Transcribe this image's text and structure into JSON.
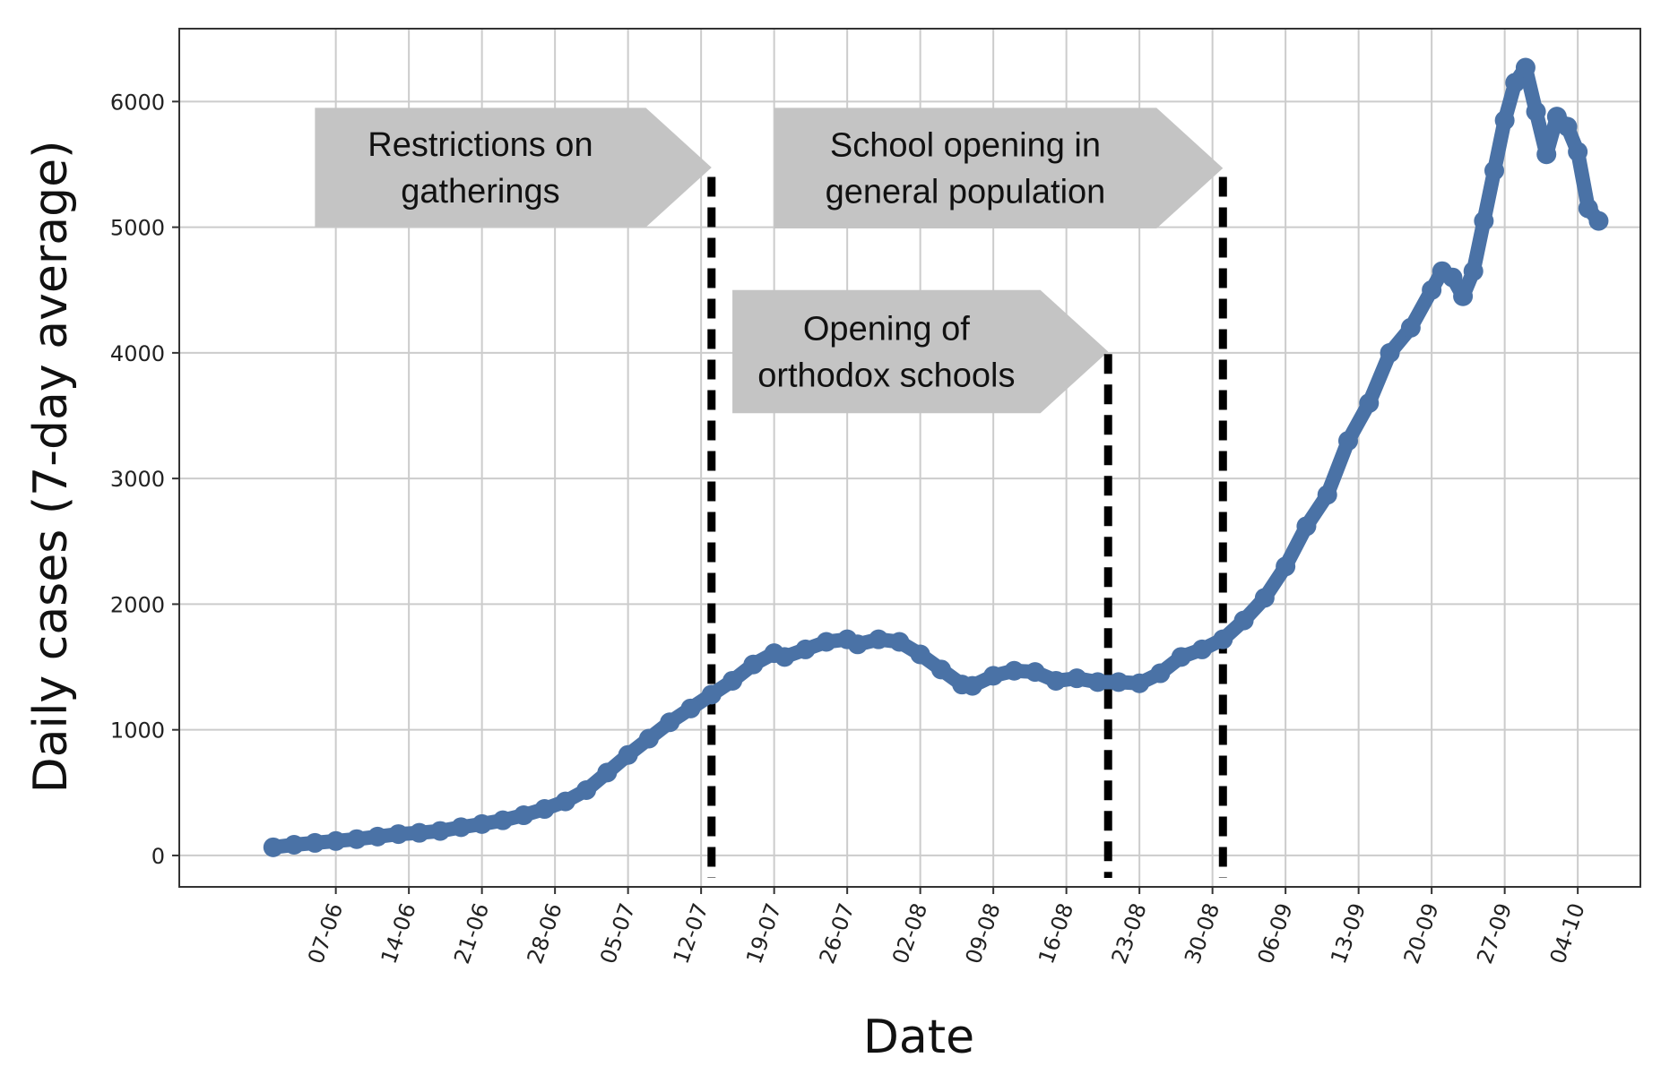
{
  "chart_data": {
    "type": "line",
    "xlabel": "Date",
    "ylabel": "Daily cases (7-day average)",
    "ylim": [
      -250,
      6580
    ],
    "yticks": [
      0,
      1000,
      2000,
      3000,
      4000,
      5000,
      6000
    ],
    "xlim": [
      "2020-05-23",
      "2020-10-10"
    ],
    "xtick_dates": [
      "2020-06-07",
      "2020-06-14",
      "2020-06-21",
      "2020-06-28",
      "2020-07-05",
      "2020-07-12",
      "2020-07-19",
      "2020-07-26",
      "2020-08-02",
      "2020-08-09",
      "2020-08-16",
      "2020-08-23",
      "2020-08-30",
      "2020-09-06",
      "2020-09-13",
      "2020-09-20",
      "2020-09-27",
      "2020-10-04"
    ],
    "xtick_labels": [
      "07-06",
      "14-06",
      "21-06",
      "28-06",
      "05-07",
      "12-07",
      "19-07",
      "26-07",
      "02-08",
      "09-08",
      "16-08",
      "23-08",
      "30-08",
      "06-09",
      "13-09",
      "20-09",
      "27-09",
      "04-10"
    ],
    "grid": true,
    "line_color": "#4a72a6",
    "series": [
      {
        "points": [
          [
            "2020-06-01",
            65
          ],
          [
            "2020-06-03",
            85
          ],
          [
            "2020-06-05",
            100
          ],
          [
            "2020-06-07",
            115
          ],
          [
            "2020-06-09",
            130
          ],
          [
            "2020-06-11",
            150
          ],
          [
            "2020-06-13",
            170
          ],
          [
            "2020-06-15",
            180
          ],
          [
            "2020-06-17",
            195
          ],
          [
            "2020-06-19",
            225
          ],
          [
            "2020-06-21",
            250
          ],
          [
            "2020-06-23",
            280
          ],
          [
            "2020-06-25",
            320
          ],
          [
            "2020-06-27",
            370
          ],
          [
            "2020-06-29",
            430
          ],
          [
            "2020-07-01",
            520
          ],
          [
            "2020-07-03",
            660
          ],
          [
            "2020-07-05",
            800
          ],
          [
            "2020-07-07",
            930
          ],
          [
            "2020-07-09",
            1060
          ],
          [
            "2020-07-11",
            1170
          ],
          [
            "2020-07-13",
            1280
          ],
          [
            "2020-07-15",
            1390
          ],
          [
            "2020-07-17",
            1520
          ],
          [
            "2020-07-19",
            1610
          ],
          [
            "2020-07-20",
            1580
          ],
          [
            "2020-07-22",
            1640
          ],
          [
            "2020-07-24",
            1700
          ],
          [
            "2020-07-26",
            1720
          ],
          [
            "2020-07-27",
            1680
          ],
          [
            "2020-07-29",
            1720
          ],
          [
            "2020-07-31",
            1700
          ],
          [
            "2020-08-02",
            1600
          ],
          [
            "2020-08-04",
            1480
          ],
          [
            "2020-08-06",
            1360
          ],
          [
            "2020-08-07",
            1350
          ],
          [
            "2020-08-09",
            1430
          ],
          [
            "2020-08-11",
            1470
          ],
          [
            "2020-08-13",
            1460
          ],
          [
            "2020-08-15",
            1390
          ],
          [
            "2020-08-17",
            1410
          ],
          [
            "2020-08-19",
            1380
          ],
          [
            "2020-08-21",
            1380
          ],
          [
            "2020-08-23",
            1370
          ],
          [
            "2020-08-25",
            1450
          ],
          [
            "2020-08-27",
            1580
          ],
          [
            "2020-08-29",
            1640
          ],
          [
            "2020-08-31",
            1720
          ],
          [
            "2020-09-02",
            1870
          ],
          [
            "2020-09-04",
            2050
          ],
          [
            "2020-09-06",
            2300
          ],
          [
            "2020-09-08",
            2620
          ],
          [
            "2020-09-10",
            2870
          ],
          [
            "2020-09-12",
            3300
          ],
          [
            "2020-09-14",
            3600
          ],
          [
            "2020-09-16",
            4000
          ],
          [
            "2020-09-18",
            4200
          ],
          [
            "2020-09-20",
            4500
          ],
          [
            "2020-09-21",
            4650
          ],
          [
            "2020-09-22",
            4600
          ],
          [
            "2020-09-23",
            4450
          ],
          [
            "2020-09-24",
            4650
          ],
          [
            "2020-09-25",
            5050
          ],
          [
            "2020-09-26",
            5450
          ],
          [
            "2020-09-27",
            5850
          ],
          [
            "2020-09-28",
            6150
          ],
          [
            "2020-09-29",
            6270
          ],
          [
            "2020-09-30",
            5920
          ],
          [
            "2020-10-01",
            5580
          ],
          [
            "2020-10-02",
            5880
          ],
          [
            "2020-10-03",
            5800
          ],
          [
            "2020-10-04",
            5600
          ],
          [
            "2020-10-05",
            5150
          ],
          [
            "2020-10-06",
            5050
          ]
        ]
      }
    ],
    "vlines": [
      {
        "date": "2020-07-13",
        "y_top": 5400
      },
      {
        "date": "2020-08-20",
        "y_top": 3990
      },
      {
        "date": "2020-08-31",
        "y_top": 5400
      }
    ],
    "annotations": [
      {
        "lines": [
          "Restrictions on",
          "gatherings"
        ],
        "date_start": "2020-06-05",
        "date_tip": "2020-07-13",
        "y_top": 5950,
        "y_bottom": 5000
      },
      {
        "lines": [
          "School opening in",
          "general population"
        ],
        "date_start": "2020-07-19",
        "date_tip": "2020-08-31",
        "y_top": 5950,
        "y_bottom": 4990
      },
      {
        "lines": [
          "Opening of",
          "orthodox schools"
        ],
        "date_start": "2020-07-15",
        "date_tip": "2020-08-20",
        "y_top": 4500,
        "y_bottom": 3520
      }
    ]
  }
}
